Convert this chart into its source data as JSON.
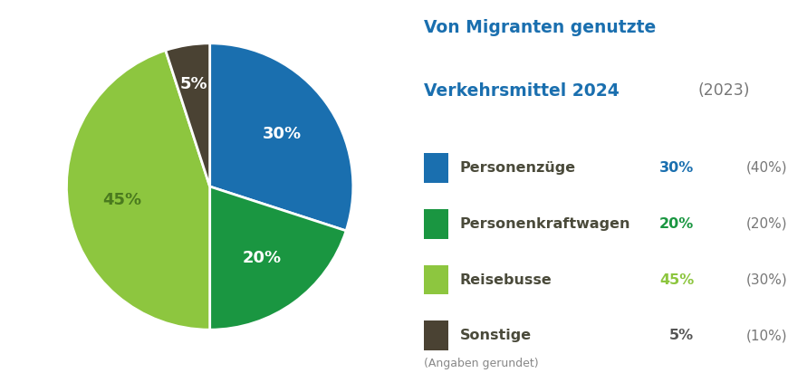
{
  "title_bold": "Von Migranten genutzte\nVerkehrsmittel 2024",
  "title_year": "(2023)",
  "slices": [
    30,
    20,
    45,
    5
  ],
  "slice_colors": [
    "#1a6faf",
    "#1a9641",
    "#8dc63f",
    "#4a4233"
  ],
  "slice_labels": [
    "30%",
    "20%",
    "45%",
    "5%"
  ],
  "label_colors": [
    "white",
    "white",
    "#4a7a1e",
    "white"
  ],
  "legend_labels": [
    "Personenzüge",
    "Personenkraftwagen",
    "Reisebusse",
    "Sonstige"
  ],
  "legend_pct_2024": [
    "30%",
    "20%",
    "45%",
    "5%"
  ],
  "legend_pct_2023": [
    "(40%)",
    "(20%)",
    "(30%)",
    "(10%)"
  ],
  "legend_pct_colors": [
    "#1a6faf",
    "#1a9641",
    "#8dc63f",
    "#555555"
  ],
  "footnote": "(Angaben gerundet)",
  "background_color": "#ffffff",
  "startangle": 90,
  "label_text_color": "#4a4a3a"
}
